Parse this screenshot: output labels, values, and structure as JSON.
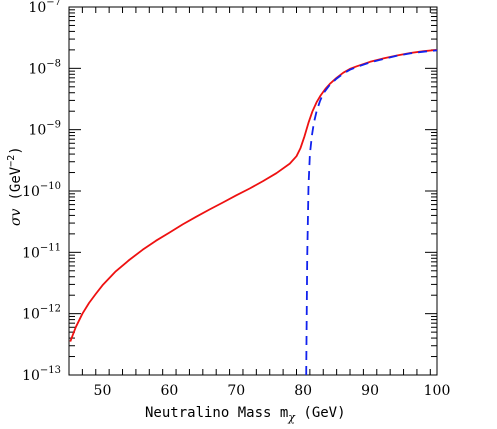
{
  "chart_data": {
    "type": "line",
    "xlabel": "Neutralino Mass m",
    "xlabel_sub": "χ",
    "xlabel_unit": " (GeV)",
    "ylabel_sym": "σv",
    "ylabel_unit": "(GeV",
    "ylabel_exp": "−2",
    "ylabel_close": ")",
    "xlim": [
      45,
      100
    ],
    "ylim": [
      1e-13,
      1e-07
    ],
    "yscale": "log",
    "x_ticks": [
      50,
      60,
      70,
      80,
      90,
      100
    ],
    "y_tick_exponents": [
      -13,
      -12,
      -11,
      -10,
      -9,
      -8,
      -7
    ],
    "y_tick_base": "10",
    "series": [
      {
        "style": "solid",
        "color": "#ee1111",
        "x": [
          45.2,
          46,
          47,
          48,
          49,
          50,
          52,
          54,
          56,
          58,
          60,
          62,
          64,
          66,
          68,
          70,
          72,
          74,
          76,
          78,
          79,
          79.6,
          80.2,
          80.8,
          81.4,
          82,
          82.6,
          83.3,
          84,
          85,
          86,
          87,
          88,
          90,
          92,
          94,
          96,
          98,
          100
        ],
        "y": [
          3.5e-13,
          6e-13,
          1e-12,
          1.5e-12,
          2.1e-12,
          2.9e-12,
          4.9e-12,
          7.5e-12,
          1.1e-11,
          1.55e-11,
          2.1e-11,
          2.85e-11,
          3.8e-11,
          5e-11,
          6.5e-11,
          8.5e-11,
          1.1e-10,
          1.45e-10,
          1.95e-10,
          2.8e-10,
          3.7e-10,
          5e-10,
          7.8e-10,
          1.3e-09,
          2e-09,
          2.8e-09,
          3.6e-09,
          4.6e-09,
          5.6e-09,
          7e-09,
          8.5e-09,
          9.8e-09,
          1.08e-08,
          1.28e-08,
          1.45e-08,
          1.62e-08,
          1.78e-08,
          1.9e-08,
          2e-08
        ]
      },
      {
        "style": "dashed",
        "color": "#1122ee",
        "x": [
          80.45,
          80.6,
          80.8,
          81.0,
          81.3,
          81.6,
          82,
          82.5,
          83,
          84,
          85,
          86,
          87,
          88,
          90,
          92,
          94,
          96,
          98,
          100
        ],
        "y": [
          1e-13,
          8e-12,
          1.2e-10,
          4e-10,
          8e-10,
          1.3e-09,
          2e-09,
          2.9e-09,
          3.9e-09,
          5.4e-09,
          6.8e-09,
          8.2e-09,
          9.5e-09,
          1.05e-08,
          1.25e-08,
          1.42e-08,
          1.6e-08,
          1.75e-08,
          1.87e-08,
          1.97e-08
        ]
      }
    ]
  }
}
